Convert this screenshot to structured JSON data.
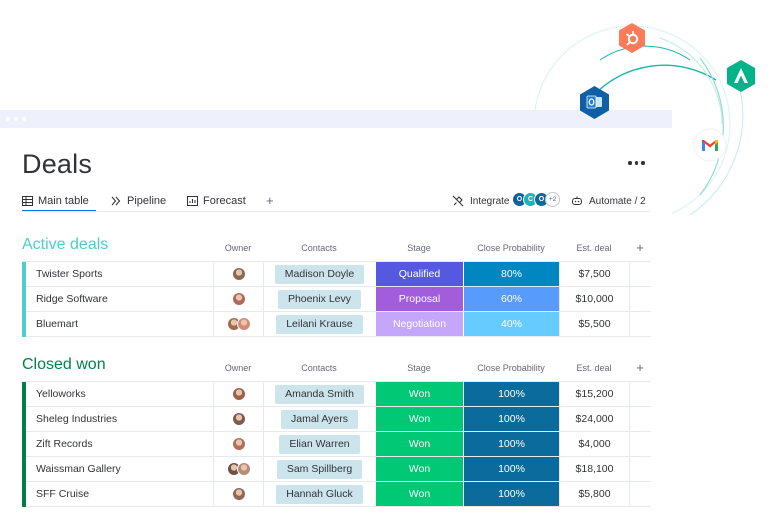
{
  "app": {
    "page_title": "Deals",
    "tabs": [
      {
        "label": "Main table",
        "icon": "table-icon",
        "active": true
      },
      {
        "label": "Pipeline",
        "icon": "pipeline-icon"
      },
      {
        "label": "Forecast",
        "icon": "chart-icon"
      }
    ],
    "add_view": "+",
    "integrate_label": "Integrate",
    "integrations_more": "+2",
    "automate_label": "Automate / 2",
    "more_icon": "more-dots-icon"
  },
  "columns": {
    "owner": "Owner",
    "contacts": "Contacts",
    "stage": "Stage",
    "probability": "Close Probability",
    "deal": "Est. deal",
    "add": "+"
  },
  "groups": [
    {
      "title": "Active deals",
      "color": "#4ecccf",
      "rows": [
        {
          "name": "Twister Sports",
          "contact": "Madison Doyle",
          "stage": "Qualified",
          "stage_color": "#5559df",
          "probability": "80%",
          "prob_color": "#0086c0",
          "deal": "$7,500"
        },
        {
          "name": "Ridge Software",
          "contact": "Phoenix Levy",
          "stage": "Proposal",
          "stage_color": "#a25ddc",
          "probability": "60%",
          "prob_color": "#579bfc",
          "deal": "$10,000"
        },
        {
          "name": "Bluemart",
          "contact": "Leilani Krause",
          "stage": "Negotiation",
          "stage_color": "#c4a7fa",
          "probability": "40%",
          "prob_color": "#66ccff",
          "deal": "$5,500"
        }
      ]
    },
    {
      "title": "Closed won",
      "color": "#037f4c",
      "rows": [
        {
          "name": "Yelloworks",
          "contact": "Amanda Smith",
          "stage": "Won",
          "stage_color": "#00c875",
          "probability": "100%",
          "prob_color": "#0a6b9c",
          "deal": "$15,200"
        },
        {
          "name": "Sheleg Industries",
          "contact": "Jamal Ayers",
          "stage": "Won",
          "stage_color": "#00c875",
          "probability": "100%",
          "prob_color": "#0a6b9c",
          "deal": "$24,000"
        },
        {
          "name": "Zift Records",
          "contact": "Elian Warren",
          "stage": "Won",
          "stage_color": "#00c875",
          "probability": "100%",
          "prob_color": "#0a6b9c",
          "deal": "$4,000"
        },
        {
          "name": "Waissman Gallery",
          "contact": "Sam Spillberg",
          "stage": "Won",
          "stage_color": "#00c875",
          "probability": "100%",
          "prob_color": "#0a6b9c",
          "deal": "$18,100"
        },
        {
          "name": "SFF Cruise",
          "contact": "Hannah Gluck",
          "stage": "Won",
          "stage_color": "#00c875",
          "probability": "100%",
          "prob_color": "#0a6b9c",
          "deal": "$5,800"
        }
      ]
    }
  ],
  "integration_badges": [
    {
      "name": "hubspot-icon",
      "color": "#ff7a59"
    },
    {
      "name": "aircall-icon",
      "color": "#00b388"
    },
    {
      "name": "outlook-icon",
      "color": "#0f5fa5"
    },
    {
      "name": "gmail-icon",
      "color": "#ffffff"
    }
  ]
}
